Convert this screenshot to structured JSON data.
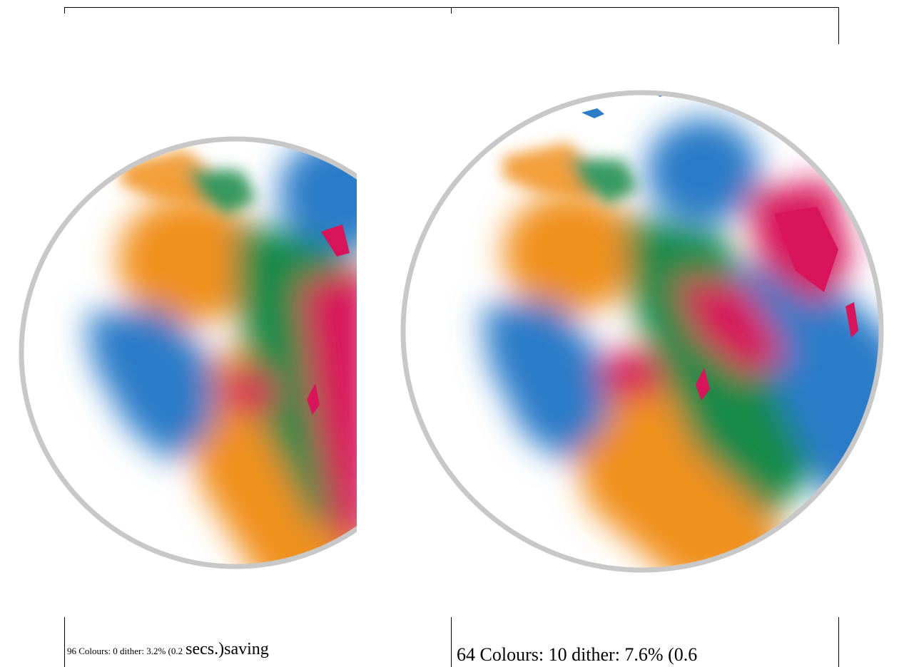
{
  "captions": {
    "left": {
      "small": "96 Colours: 0 dither: 3.2% (0.2",
      "large": "secs.)saving"
    },
    "right": {
      "large": "64 Colours: 10 dither: 7.6% (0.6"
    }
  },
  "colors": {
    "orange": "#f0901c",
    "green": "#128a4a",
    "blue": "#2c7cc8",
    "magenta": "#d8145a",
    "rim": "#c8c8c8"
  }
}
